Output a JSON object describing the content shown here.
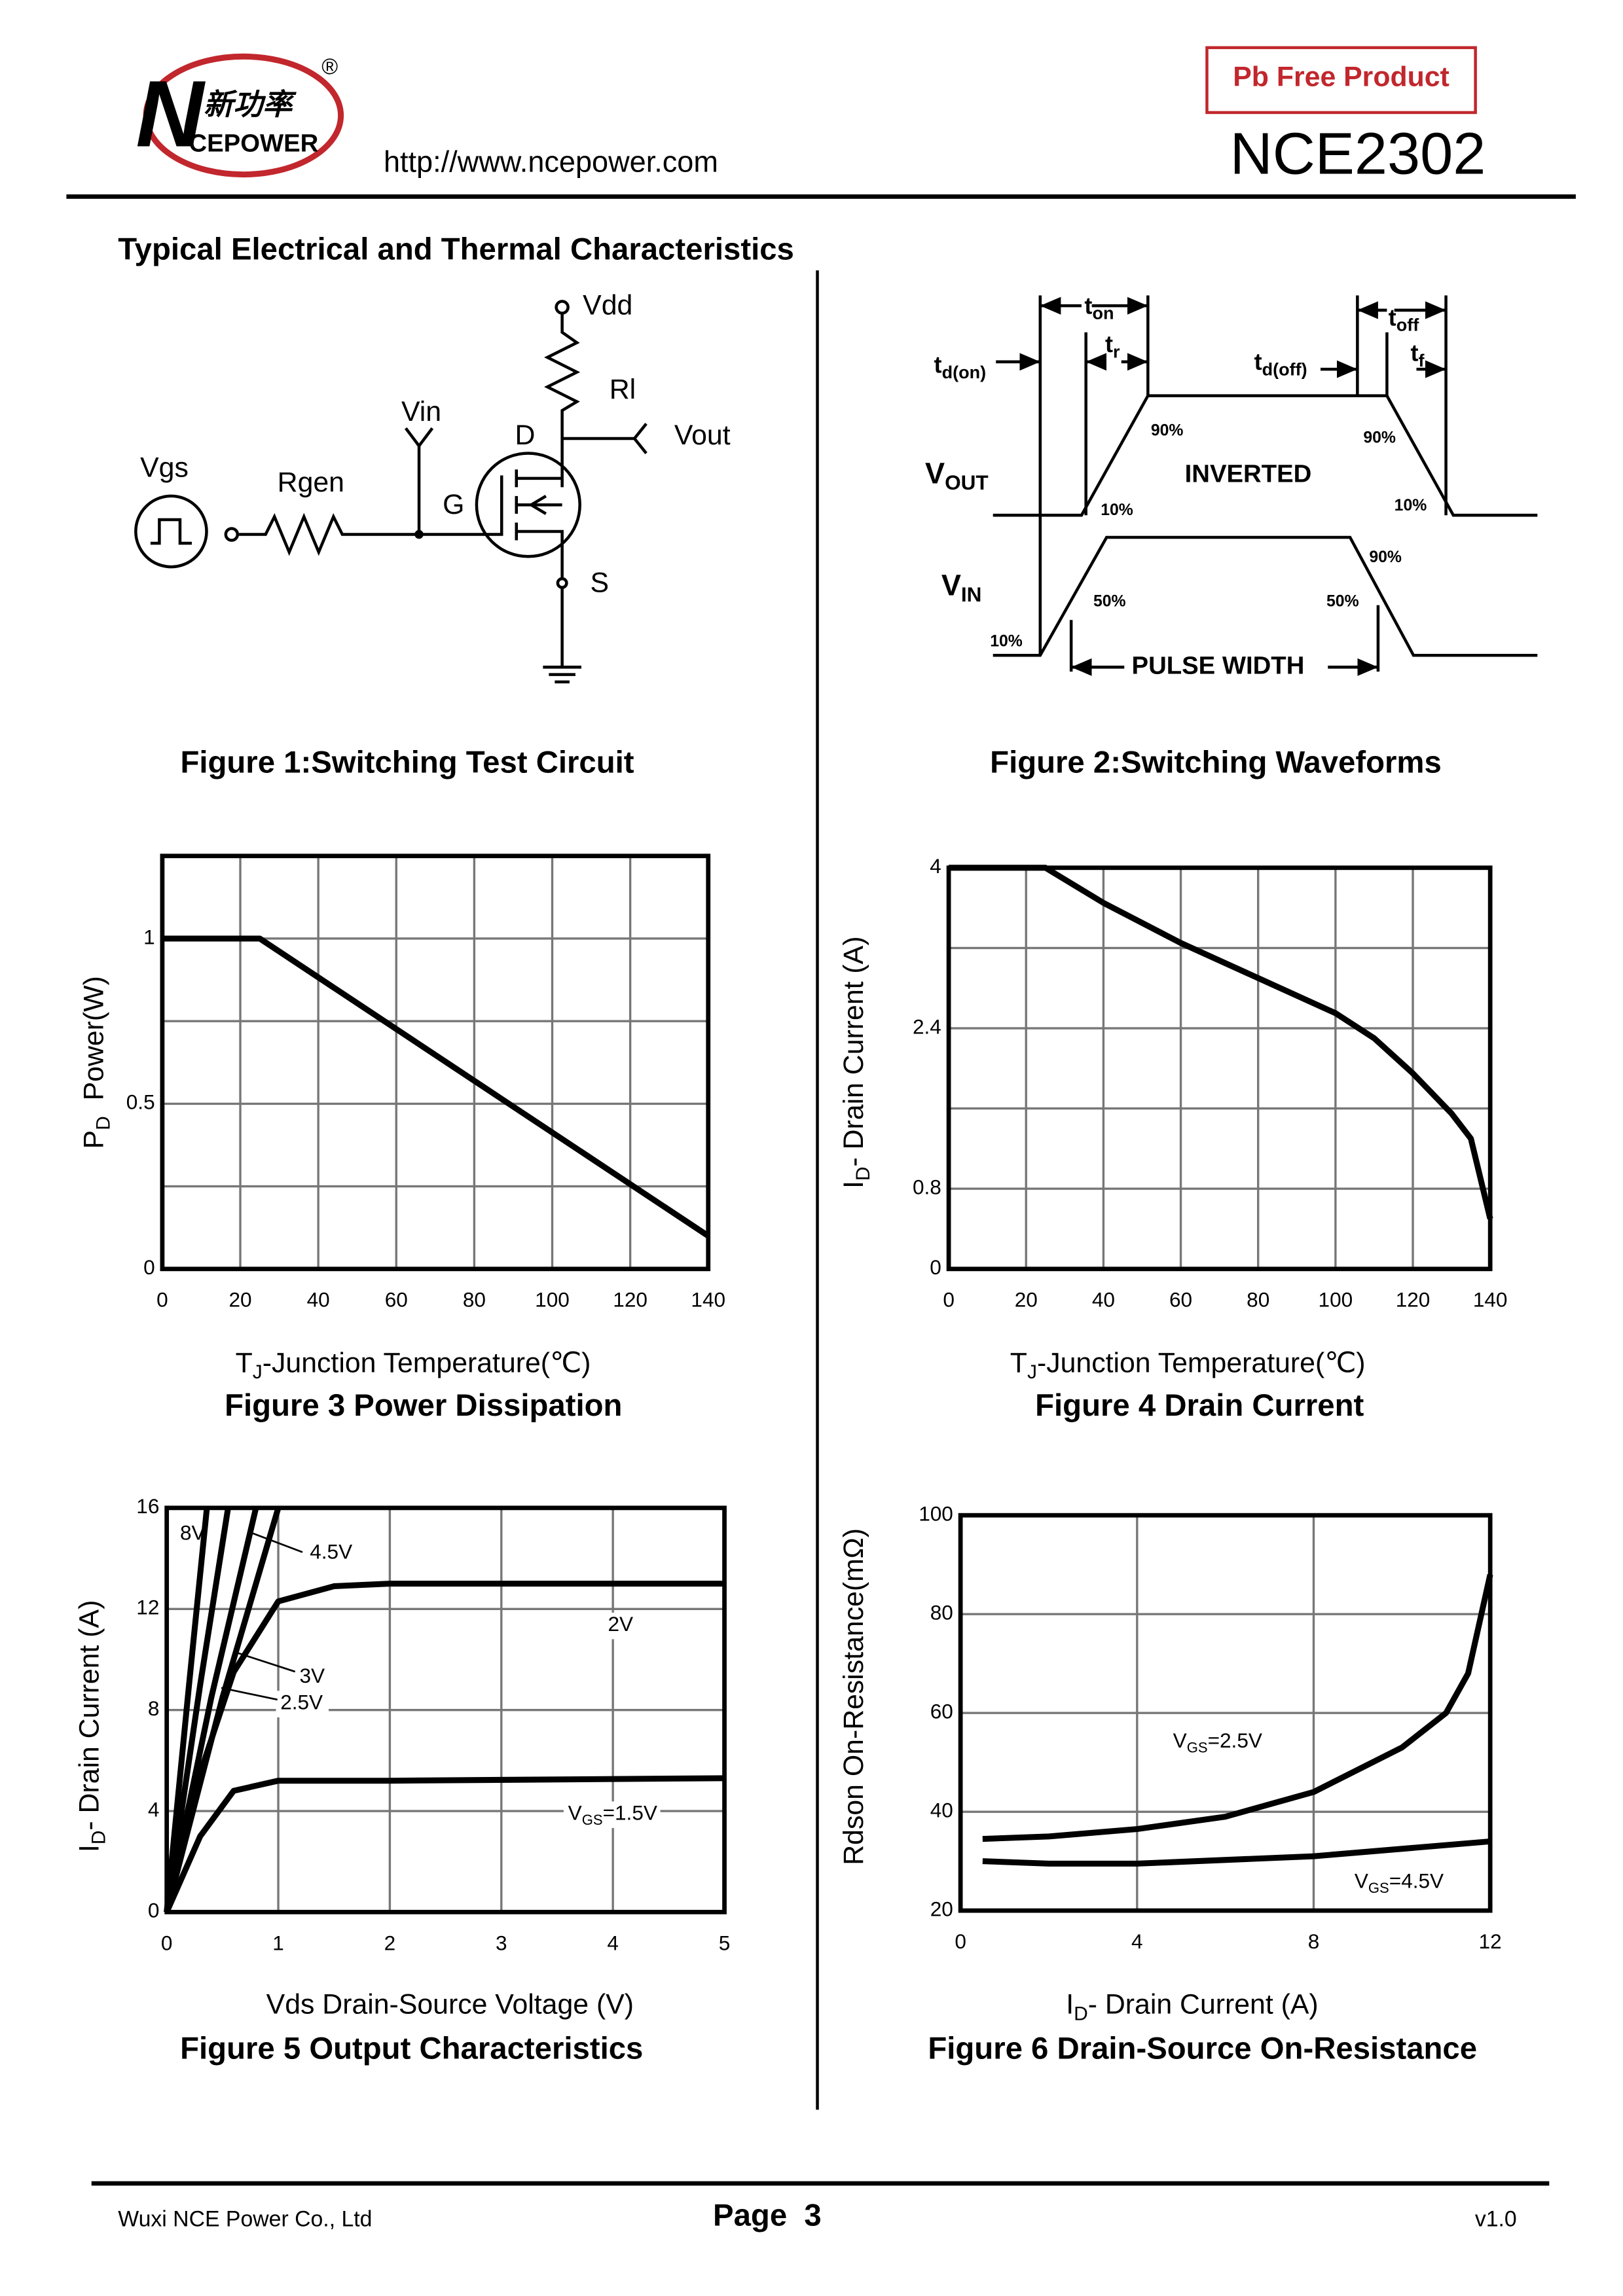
{
  "header": {
    "logo_mark": "N",
    "logo_cn": "新功率",
    "logo_en": "CEPOWER",
    "registered": "®",
    "url": "http://www.ncepower.com",
    "badge": "Pb Free Product",
    "part": "NCE2302"
  },
  "section_title": "Typical Electrical and Thermal Characteristics",
  "circuit": {
    "caption": "Figure 1:Switching Test Circuit",
    "vdd": "Vdd",
    "rl": "Rl",
    "vin": "Vin",
    "d": "D",
    "vout": "Vout",
    "vgs": "Vgs",
    "rgen": "Rgen",
    "g": "G",
    "s": "S"
  },
  "waveforms": {
    "caption": "Figure 2:Switching Waveforms",
    "td_on": [
      "t",
      "d(on)"
    ],
    "t_on": [
      "t",
      "on"
    ],
    "t_r": [
      "t",
      "r"
    ],
    "td_off": [
      "t",
      "d(off)"
    ],
    "t_off": [
      "t",
      "off"
    ],
    "t_f": [
      "t",
      "f"
    ],
    "vout_90a": "90%",
    "vout_90b": "90%",
    "inverted": "INVERTED",
    "v_out": [
      "V",
      "OUT"
    ],
    "vout_10a": "10%",
    "vout_10b": "10%",
    "v_in": [
      "V",
      "IN"
    ],
    "vin_50a": "50%",
    "vin_50b": "50%",
    "vin_90": "90%",
    "vin_10": "10%",
    "pulse_width": "PULSE WIDTH"
  },
  "charts": [
    {
      "caption": "Figure 3 Power Dissipation",
      "xlabel": [
        "T",
        "J",
        "-Junction Temperature(℃)"
      ],
      "ylabel": [
        "P",
        "D",
        "  Power(W)"
      ],
      "xlim": [
        0,
        140
      ],
      "ylim": [
        0,
        1.25
      ],
      "xticks": [
        0,
        20,
        40,
        60,
        80,
        100,
        120,
        140
      ],
      "yticks": [
        0,
        0.5,
        1
      ],
      "xgrid": [
        20,
        40,
        60,
        80,
        100,
        120
      ],
      "ygrid": [
        0.25,
        0.5,
        0.75,
        1
      ],
      "series": [
        {
          "x": [
            0,
            25,
            140
          ],
          "y": [
            1,
            1,
            0.1
          ]
        }
      ]
    },
    {
      "caption": "Figure 4 Drain Current",
      "xlabel": [
        "T",
        "J",
        "-Junction Temperature(℃)"
      ],
      "ylabel": [
        "I",
        "D",
        "- Drain Current (A)"
      ],
      "xlim": [
        0,
        140
      ],
      "ylim": [
        0,
        4
      ],
      "xticks": [
        0,
        20,
        40,
        60,
        80,
        100,
        120,
        140
      ],
      "yticks": [
        0,
        0.8,
        2.4,
        4
      ],
      "xgrid": [
        20,
        40,
        60,
        80,
        100,
        120
      ],
      "ygrid": [
        0.8,
        1.6,
        2.4,
        3.2
      ],
      "series": [
        {
          "x": [
            0,
            25,
            40,
            60,
            80,
            100,
            110,
            120,
            130,
            135,
            140
          ],
          "y": [
            4,
            4,
            3.65,
            3.25,
            2.9,
            2.55,
            2.3,
            1.95,
            1.55,
            1.3,
            0.5
          ]
        }
      ]
    },
    {
      "caption": "Figure 5 Output Characteristics",
      "xlabel": [
        "Vds Drain-Source Voltage (V)"
      ],
      "ylabel": [
        "I",
        "D",
        "- Drain Current (A)"
      ],
      "xlim": [
        0,
        5
      ],
      "ylim": [
        0,
        16
      ],
      "xticks": [
        0,
        1,
        2,
        3,
        4,
        5
      ],
      "yticks": [
        0,
        4,
        8,
        12,
        16
      ],
      "xgrid": [
        1,
        2,
        3,
        4
      ],
      "ygrid": [
        4,
        8,
        12
      ],
      "series": [
        {
          "label": [
            "8V"
          ],
          "x": [
            0,
            0.2,
            0.36
          ],
          "y": [
            0,
            9,
            16
          ]
        },
        {
          "label": [
            "4.5V"
          ],
          "x": [
            0,
            0.3,
            0.55
          ],
          "y": [
            0,
            9,
            16
          ]
        },
        {
          "label": [
            "3V"
          ],
          "x": [
            0,
            0.4,
            0.8
          ],
          "y": [
            0,
            8.5,
            16
          ]
        },
        {
          "label": [
            "2.5V"
          ],
          "x": [
            0,
            0.5,
            1
          ],
          "y": [
            0,
            8.5,
            16
          ]
        },
        {
          "label": [
            "2V"
          ],
          "x": [
            0,
            0.3,
            0.6,
            1,
            1.5,
            2,
            5
          ],
          "y": [
            0,
            5.5,
            9.5,
            12.3,
            12.9,
            13,
            13
          ]
        },
        {
          "label": [
            "V",
            "GS",
            "=1.5V"
          ],
          "x": [
            0,
            0.3,
            0.6,
            1,
            2,
            5
          ],
          "y": [
            0,
            3,
            4.8,
            5.2,
            5.2,
            5.3
          ]
        }
      ]
    },
    {
      "caption": "Figure 6 Drain-Source On-Resistance",
      "xlabel": [
        "I",
        "D",
        "- Drain Current (A)"
      ],
      "ylabel": [
        "Rdson On-Resistance(mΩ)"
      ],
      "xlim": [
        0,
        12
      ],
      "ylim": [
        20,
        100
      ],
      "xticks": [
        0,
        4,
        8,
        12
      ],
      "yticks": [
        20,
        40,
        60,
        80,
        100
      ],
      "xgrid": [
        4,
        8
      ],
      "ygrid": [
        40,
        60,
        80
      ],
      "series": [
        {
          "label": [
            "V",
            "GS",
            "=2.5V"
          ],
          "x": [
            0.5,
            2,
            4,
            6,
            8,
            10,
            11,
            11.5,
            12
          ],
          "y": [
            34.5,
            35,
            36.5,
            39,
            44,
            53,
            60,
            68,
            88
          ]
        },
        {
          "label": [
            "V",
            "GS",
            "=4.5V"
          ],
          "x": [
            0.5,
            2,
            4,
            8,
            12
          ],
          "y": [
            30,
            29.5,
            29.5,
            31,
            34
          ]
        }
      ]
    }
  ],
  "footer": {
    "company": "Wuxi NCE Power Co., Ltd",
    "page": "Page  3",
    "version": "v1.0"
  }
}
